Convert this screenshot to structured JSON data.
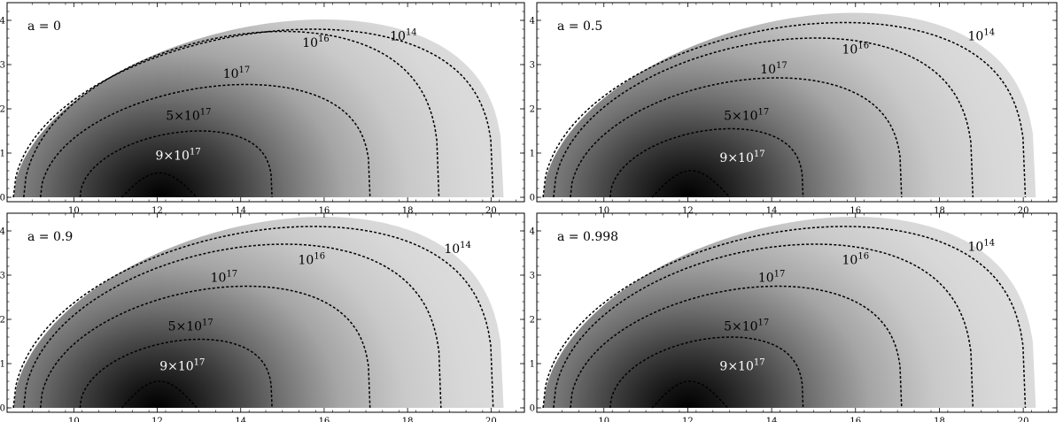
{
  "chart_data": [
    {
      "type": "heatmap",
      "panel_label": "a = 0",
      "xlim": [
        8.4,
        20.8
      ],
      "ylim": [
        -0.1,
        4.4
      ],
      "x_ticks": [
        10,
        12,
        14,
        16,
        18,
        20
      ],
      "y_ticks": [
        0,
        1,
        2,
        3,
        4
      ],
      "colormap": "density, dark = high",
      "peak": [
        12.1,
        0.0
      ],
      "contours": [
        {
          "label": "10",
          "exp": "14",
          "r_out": 20.05,
          "height": 3.8
        },
        {
          "label": "10",
          "exp": "16",
          "r_out": 18.75,
          "height": 3.75
        },
        {
          "label": "10",
          "exp": "17",
          "r_out": 17.1,
          "height": 2.55
        },
        {
          "label": "5×10",
          "exp": "17",
          "r_out": 14.75,
          "height": 1.5
        },
        {
          "label": "9×10",
          "exp": "17",
          "r_out": 12.95,
          "height": 0.55
        }
      ]
    },
    {
      "type": "heatmap",
      "panel_label": "a = 0.5",
      "xlim": [
        8.4,
        20.8
      ],
      "ylim": [
        -0.1,
        4.4
      ],
      "x_ticks": [
        10,
        12,
        14,
        16,
        18,
        20
      ],
      "y_ticks": [
        0,
        1,
        2,
        3,
        4
      ],
      "colormap": "density, dark = high",
      "peak": [
        12.0,
        0.0
      ],
      "contours": [
        {
          "label": "10",
          "exp": "14",
          "r_out": 20.05,
          "height": 3.95
        },
        {
          "label": "10",
          "exp": "16",
          "r_out": 18.8,
          "height": 3.6
        },
        {
          "label": "10",
          "exp": "17",
          "r_out": 17.1,
          "height": 2.7
        },
        {
          "label": "5×10",
          "exp": "17",
          "r_out": 14.75,
          "height": 1.55
        },
        {
          "label": "9×10",
          "exp": "17",
          "r_out": 13.0,
          "height": 0.6
        }
      ]
    },
    {
      "type": "heatmap",
      "panel_label": "a = 0.9",
      "xlim": [
        8.4,
        20.8
      ],
      "ylim": [
        -0.1,
        4.4
      ],
      "x_ticks": [
        10,
        12,
        14,
        16,
        18,
        20
      ],
      "y_ticks": [
        0,
        1,
        2,
        3,
        4
      ],
      "colormap": "density, dark = high",
      "peak": [
        12.0,
        0.0
      ],
      "contours": [
        {
          "label": "10",
          "exp": "14",
          "r_out": 20.05,
          "height": 4.1
        },
        {
          "label": "10",
          "exp": "16",
          "r_out": 18.8,
          "height": 3.7
        },
        {
          "label": "10",
          "exp": "17",
          "r_out": 17.1,
          "height": 2.75
        },
        {
          "label": "5×10",
          "exp": "17",
          "r_out": 14.75,
          "height": 1.55
        },
        {
          "label": "9×10",
          "exp": "17",
          "r_out": 12.95,
          "height": 0.6
        }
      ]
    },
    {
      "type": "heatmap",
      "panel_label": "a = 0.998",
      "xlim": [
        8.4,
        20.8
      ],
      "ylim": [
        -0.1,
        4.4
      ],
      "x_ticks": [
        10,
        12,
        14,
        16,
        18,
        20
      ],
      "y_ticks": [
        0,
        1,
        2,
        3,
        4
      ],
      "colormap": "density, dark = high",
      "peak": [
        12.0,
        0.0
      ],
      "contours": [
        {
          "label": "10",
          "exp": "14",
          "r_out": 20.05,
          "height": 4.1
        },
        {
          "label": "10",
          "exp": "16",
          "r_out": 18.8,
          "height": 3.7
        },
        {
          "label": "10",
          "exp": "17",
          "r_out": 17.1,
          "height": 2.75
        },
        {
          "label": "5×10",
          "exp": "17",
          "r_out": 14.75,
          "height": 1.6
        },
        {
          "label": "9×10",
          "exp": "17",
          "r_out": 12.95,
          "height": 0.6
        }
      ]
    }
  ]
}
